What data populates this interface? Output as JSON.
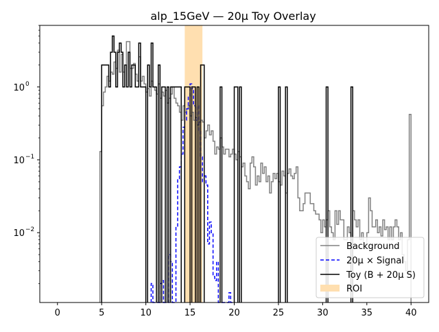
{
  "chart_data": {
    "type": "line",
    "title": "alp_15GeV — 20μ Toy Overlay",
    "xlabel": "",
    "ylabel": "",
    "xlim": [
      -2,
      42
    ],
    "ylim": [
      0.0011,
      7.0
    ],
    "yscale": "log",
    "x_ticks": [
      0,
      5,
      10,
      15,
      20,
      25,
      30,
      35,
      40
    ],
    "x_tick_labels": [
      "0",
      "5",
      "10",
      "15",
      "20",
      "25",
      "30",
      "35",
      "40"
    ],
    "y_ticks": [
      0.01,
      0.1,
      1
    ],
    "y_tick_labels": [
      "10",
      "10",
      "10"
    ],
    "y_tick_exponents": [
      "−2",
      "−1",
      "0"
    ],
    "grid": false,
    "legend_position": "bottom-right",
    "roi": {
      "label": "ROI",
      "x_range": [
        14.4,
        16.4
      ],
      "color": "#ffdfb0"
    },
    "series": [
      {
        "name": "Background",
        "style": "step",
        "color": "#808080",
        "line": "solid",
        "points": [
          [
            4.9,
            0.13
          ],
          [
            5.1,
            0.55
          ],
          [
            5.3,
            0.85
          ],
          [
            5.5,
            1.0
          ],
          [
            5.7,
            1.4
          ],
          [
            5.9,
            1.2
          ],
          [
            6.1,
            1.6
          ],
          [
            6.3,
            1.5
          ],
          [
            6.5,
            2.2
          ],
          [
            6.7,
            1.8
          ],
          [
            6.9,
            3.2
          ],
          [
            7.1,
            1.6
          ],
          [
            7.3,
            2.8
          ],
          [
            7.5,
            1.6
          ],
          [
            7.7,
            2.0
          ],
          [
            7.9,
            4.2
          ],
          [
            8.1,
            4.2
          ],
          [
            8.3,
            1.8
          ],
          [
            8.5,
            1.8
          ],
          [
            8.7,
            2.1
          ],
          [
            8.9,
            1.5
          ],
          [
            9.1,
            1.2
          ],
          [
            9.3,
            2.6
          ],
          [
            9.5,
            1.2
          ],
          [
            9.7,
            1.4
          ],
          [
            9.9,
            1.1
          ],
          [
            10.1,
            0.85
          ],
          [
            10.3,
            0.95
          ],
          [
            10.5,
            0.75
          ],
          [
            10.7,
            1.2
          ],
          [
            10.9,
            1.0
          ],
          [
            11.1,
            0.9
          ],
          [
            11.3,
            0.8
          ],
          [
            11.5,
            1.1
          ],
          [
            11.7,
            0.7
          ],
          [
            11.9,
            0.85
          ],
          [
            12.1,
            0.75
          ],
          [
            12.3,
            0.9
          ],
          [
            12.5,
            0.6
          ],
          [
            12.7,
            0.7
          ],
          [
            12.9,
            0.8
          ],
          [
            13.1,
            1.0
          ],
          [
            13.3,
            0.7
          ],
          [
            13.5,
            0.6
          ],
          [
            13.7,
            0.55
          ],
          [
            13.9,
            0.45
          ],
          [
            14.1,
            0.35
          ],
          [
            14.3,
            0.55
          ],
          [
            14.5,
            0.45
          ],
          [
            14.7,
            0.5
          ],
          [
            14.9,
            0.55
          ],
          [
            15.1,
            0.4
          ],
          [
            15.3,
            0.45
          ],
          [
            15.5,
            0.35
          ],
          [
            15.7,
            0.38
          ],
          [
            15.9,
            0.3
          ],
          [
            16.1,
            0.33
          ],
          [
            16.3,
            0.35
          ],
          [
            16.5,
            0.33
          ],
          [
            16.7,
            0.2
          ],
          [
            16.9,
            0.25
          ],
          [
            17.1,
            0.3
          ],
          [
            17.3,
            0.22
          ],
          [
            17.5,
            0.25
          ],
          [
            17.7,
            0.18
          ],
          [
            17.9,
            0.12
          ],
          [
            18.1,
            0.15
          ],
          [
            18.3,
            0.14
          ],
          [
            18.5,
            0.2
          ],
          [
            18.7,
            0.15
          ],
          [
            18.9,
            0.12
          ],
          [
            19.1,
            0.14
          ],
          [
            19.3,
            0.14
          ],
          [
            19.5,
            0.11
          ],
          [
            19.7,
            0.12
          ],
          [
            19.9,
            0.14
          ],
          [
            20.1,
            0.12
          ],
          [
            20.3,
            0.1
          ],
          [
            20.5,
            0.13
          ],
          [
            20.7,
            0.11
          ],
          [
            20.9,
            0.08
          ],
          [
            21.1,
            0.09
          ],
          [
            21.3,
            0.06
          ],
          [
            21.5,
            0.05
          ],
          [
            21.7,
            0.04
          ],
          [
            21.9,
            0.09
          ],
          [
            22.1,
            0.11
          ],
          [
            22.3,
            0.08
          ],
          [
            22.5,
            0.045
          ],
          [
            22.7,
            0.06
          ],
          [
            22.9,
            0.05
          ],
          [
            23.1,
            0.09
          ],
          [
            23.3,
            0.065
          ],
          [
            23.5,
            0.08
          ],
          [
            23.7,
            0.05
          ],
          [
            23.9,
            0.06
          ],
          [
            24.1,
            0.035
          ],
          [
            24.3,
            0.05
          ],
          [
            24.5,
            0.065
          ],
          [
            24.7,
            0.055
          ],
          [
            24.9,
            0.065
          ],
          [
            25.1,
            0.05
          ],
          [
            25.3,
            0.045
          ],
          [
            25.5,
            0.07
          ],
          [
            25.7,
            0.06
          ],
          [
            25.9,
            0.035
          ],
          [
            26.1,
            0.065
          ],
          [
            26.3,
            0.075
          ],
          [
            26.5,
            0.06
          ],
          [
            26.7,
            0.055
          ],
          [
            26.9,
            0.065
          ],
          [
            27.1,
            0.08
          ],
          [
            27.3,
            0.03
          ],
          [
            27.5,
            0.02
          ],
          [
            27.7,
            0.02
          ],
          [
            27.9,
            0.025
          ],
          [
            28.1,
            0.035
          ],
          [
            28.3,
            0.035
          ],
          [
            28.5,
            0.035
          ],
          [
            28.7,
            0.025
          ],
          [
            28.9,
            0.025
          ],
          [
            29.1,
            0.02
          ],
          [
            29.3,
            0.018
          ],
          [
            29.5,
            0.018
          ],
          [
            29.7,
            0.015
          ],
          [
            29.9,
            0.01
          ],
          [
            30.1,
            0.015
          ],
          [
            30.3,
            0.012
          ],
          [
            30.5,
            0.015
          ],
          [
            30.7,
            0.02
          ],
          [
            30.9,
            0.012
          ],
          [
            31.1,
            0.01
          ],
          [
            31.3,
            0.008
          ],
          [
            31.5,
            0.02
          ],
          [
            31.7,
            0.013
          ],
          [
            31.9,
            0.02
          ],
          [
            32.1,
            0.015
          ],
          [
            32.3,
            0.015
          ],
          [
            32.5,
            0.008
          ],
          [
            32.7,
            0.008
          ],
          [
            32.9,
            0.012
          ],
          [
            33.1,
            0.01
          ],
          [
            33.3,
            0.008
          ],
          [
            33.5,
            0.02
          ],
          [
            33.7,
            0.015
          ],
          [
            33.9,
            0.012
          ],
          [
            34.1,
            0.015
          ],
          [
            34.3,
            0.008
          ],
          [
            34.5,
            0.01
          ],
          [
            34.7,
            0.006
          ],
          [
            34.9,
            0.007
          ],
          [
            35.1,
            0.01
          ],
          [
            35.3,
            0.03
          ],
          [
            35.5,
            0.02
          ],
          [
            35.7,
            0.012
          ],
          [
            35.9,
            0.012
          ],
          [
            36.1,
            0.015
          ],
          [
            36.3,
            0.01
          ],
          [
            36.5,
            0.012
          ],
          [
            36.7,
            0.009
          ],
          [
            36.9,
            0.015
          ],
          [
            37.1,
            0.011
          ],
          [
            37.3,
            0.012
          ],
          [
            37.5,
            0.008
          ],
          [
            37.7,
            0.012
          ],
          [
            37.9,
            0.008
          ],
          [
            38.1,
            0.012
          ],
          [
            38.3,
            0.015
          ],
          [
            38.5,
            0.012
          ],
          [
            38.7,
            0.008
          ],
          [
            38.9,
            0.01
          ],
          [
            39.1,
            0.005
          ],
          [
            39.3,
            0.004
          ],
          [
            39.5,
            0.003
          ],
          [
            39.7,
            0.008
          ],
          [
            39.9,
            0.42
          ]
        ]
      },
      {
        "name": "20μ × Signal",
        "style": "step",
        "color": "#0000ff",
        "line": "dashed",
        "points": [
          [
            10.7,
            0.002
          ],
          [
            10.9,
            0.0011
          ],
          [
            11.1,
            0.0011
          ],
          [
            11.3,
            0.0011
          ],
          [
            11.5,
            0.0011
          ],
          [
            11.7,
            0.002
          ],
          [
            11.9,
            0.0022
          ],
          [
            12.1,
            0.0011
          ],
          [
            12.3,
            0.0011
          ],
          [
            12.5,
            0.0011
          ],
          [
            12.7,
            0.005
          ],
          [
            12.9,
            0.004
          ],
          [
            13.1,
            0.0011
          ],
          [
            13.3,
            0.0011
          ],
          [
            13.5,
            0.012
          ],
          [
            13.7,
            0.055
          ],
          [
            13.9,
            0.08
          ],
          [
            14.1,
            0.12
          ],
          [
            14.3,
            0.28
          ],
          [
            14.5,
            0.35
          ],
          [
            14.7,
            0.5
          ],
          [
            14.9,
            0.75
          ],
          [
            15.1,
            1.1
          ],
          [
            15.3,
            0.95
          ],
          [
            15.5,
            0.55
          ],
          [
            15.7,
            0.35
          ],
          [
            15.9,
            0.55
          ],
          [
            16.1,
            0.25
          ],
          [
            16.3,
            0.11
          ],
          [
            16.5,
            0.05
          ],
          [
            16.7,
            0.06
          ],
          [
            16.9,
            0.045
          ],
          [
            17.1,
            0.007
          ],
          [
            17.3,
            0.014
          ],
          [
            17.5,
            0.01
          ],
          [
            17.7,
            0.0025
          ],
          [
            17.9,
            0.0022
          ],
          [
            18.1,
            0.004
          ],
          [
            18.3,
            0.0011
          ],
          [
            18.5,
            0.0011
          ],
          [
            18.7,
            0.0011
          ],
          [
            18.9,
            0.0011
          ],
          [
            19.1,
            0.0011
          ],
          [
            19.3,
            0.0011
          ],
          [
            19.5,
            0.0015
          ],
          [
            19.7,
            0.0011
          ]
        ]
      },
      {
        "name": "Toy (B + 20μ S)",
        "style": "step",
        "color": "#000000",
        "line": "solid",
        "points": [
          [
            5.1,
            2
          ],
          [
            5.3,
            2
          ],
          [
            5.5,
            2
          ],
          [
            5.7,
            2
          ],
          [
            5.9,
            1
          ],
          [
            6.1,
            3
          ],
          [
            6.3,
            5
          ],
          [
            6.5,
            3
          ],
          [
            6.7,
            1
          ],
          [
            6.9,
            3
          ],
          [
            7.1,
            4
          ],
          [
            7.3,
            3
          ],
          [
            7.5,
            1
          ],
          [
            7.7,
            2
          ],
          [
            7.9,
            1
          ],
          [
            8.1,
            3
          ],
          [
            8.3,
            1
          ],
          [
            8.5,
            2
          ],
          [
            8.7,
            2
          ],
          [
            8.9,
            1
          ],
          [
            9.1,
            1
          ],
          [
            9.3,
            4
          ],
          [
            9.5,
            1
          ],
          [
            9.7,
            1
          ],
          [
            9.9,
            1
          ],
          [
            10.3,
            2
          ],
          [
            10.5,
            1
          ],
          [
            10.7,
            4
          ],
          [
            10.9,
            1
          ],
          [
            11.1,
            1
          ],
          [
            11.5,
            2
          ],
          [
            11.9,
            1
          ],
          [
            12.1,
            1
          ],
          [
            12.5,
            1
          ],
          [
            12.9,
            1
          ],
          [
            13.1,
            1
          ],
          [
            13.3,
            1
          ],
          [
            13.5,
            1
          ],
          [
            13.7,
            1
          ],
          [
            13.9,
            1
          ],
          [
            14.5,
            1
          ],
          [
            14.7,
            1
          ],
          [
            14.9,
            1
          ],
          [
            15.3,
            1
          ],
          [
            15.5,
            1
          ],
          [
            15.9,
            1
          ],
          [
            16.3,
            2
          ],
          [
            16.5,
            2
          ],
          [
            18.5,
            1
          ],
          [
            20.1,
            1
          ],
          [
            20.3,
            1
          ],
          [
            20.7,
            1
          ],
          [
            25.1,
            1
          ],
          [
            25.9,
            1
          ],
          [
            30.5,
            1
          ],
          [
            33.3,
            1
          ]
        ]
      }
    ]
  }
}
